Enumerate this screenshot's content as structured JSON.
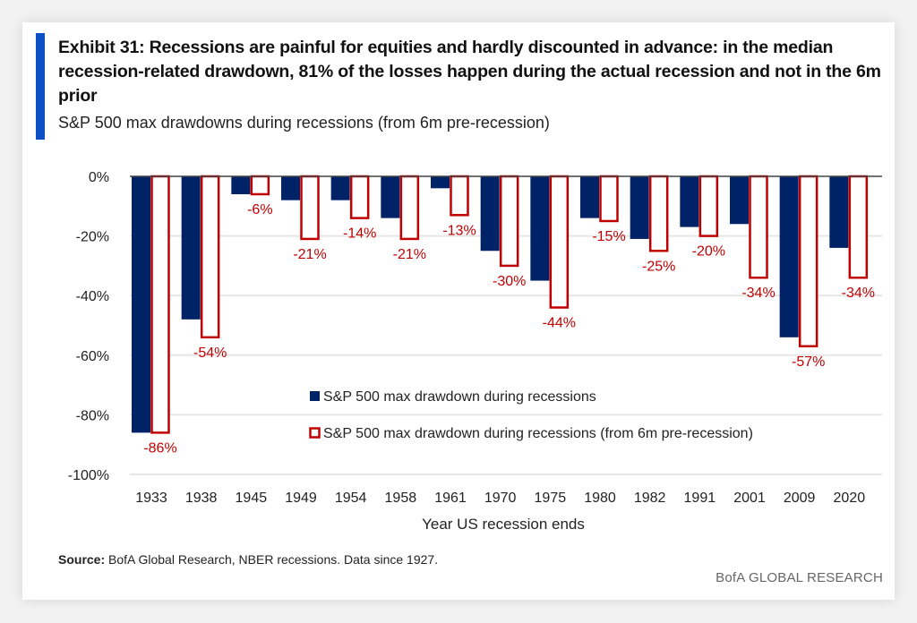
{
  "header": {
    "title": "Exhibit 31: Recessions are painful for equities and hardly discounted in advance: in the median recession-related drawdown, 81% of the losses happen during the actual recession and not in the 6m prior",
    "subtitle": "S&P 500 max drawdowns during recessions (from 6m pre-recession)"
  },
  "footer": {
    "source_label": "Source:",
    "source_text": " BofA Global Research, NBER recessions. Data since 1927.",
    "brand": "BofA GLOBAL RESEARCH"
  },
  "colors": {
    "navy": "#002266",
    "red": "#c00000",
    "accent": "#0b4fc4"
  },
  "chart_data": {
    "type": "bar",
    "title": "S&P 500 max drawdowns during recessions (from 6m pre-recession)",
    "xlabel": "Year US recession ends",
    "ylabel": "",
    "ylim": [
      -100,
      0
    ],
    "yticks": [
      0,
      -20,
      -40,
      -60,
      -80,
      -100
    ],
    "ytick_labels": [
      "0%",
      "-20%",
      "-40%",
      "-60%",
      "-80%",
      "-100%"
    ],
    "grid": true,
    "legend_position": "center-right inside plot",
    "categories": [
      "1933",
      "1938",
      "1945",
      "1949",
      "1954",
      "1958",
      "1961",
      "1970",
      "1975",
      "1980",
      "1982",
      "1991",
      "2001",
      "2009",
      "2020"
    ],
    "series": [
      {
        "name": "S&P 500 max drawdown during recessions",
        "style": "filled-navy",
        "values": [
          -86,
          -48,
          -6,
          -8,
          -8,
          -14,
          -4,
          -25,
          -35,
          -14,
          -21,
          -17,
          -16,
          -54,
          -24
        ],
        "labeled": false
      },
      {
        "name": "S&P 500 max drawdown during recessions (from 6m pre-recession)",
        "style": "outlined-red",
        "values": [
          -86,
          -54,
          -6,
          -21,
          -14,
          -21,
          -13,
          -30,
          -44,
          -15,
          -25,
          -20,
          -34,
          -57,
          -34
        ],
        "data_labels": [
          "-86%",
          "-54%",
          "-6%",
          "-21%",
          "-14%",
          "-21%",
          "-13%",
          "-30%",
          "-44%",
          "-15%",
          "-25%",
          "-20%",
          "-34%",
          "-57%",
          "-34%"
        ],
        "labeled": true
      }
    ]
  }
}
